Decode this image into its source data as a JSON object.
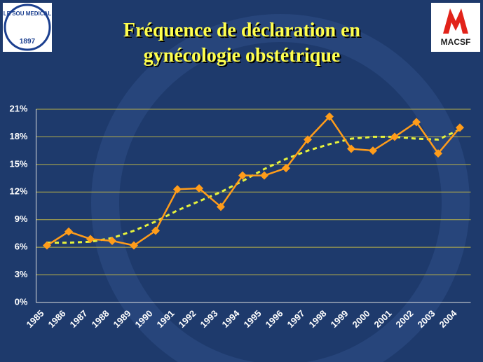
{
  "logo_left": {
    "name": "LE SOU MEDICAL",
    "year": "1897"
  },
  "logo_right": "MACSF",
  "chart_data": {
    "type": "line",
    "title": [
      "Fréquence de déclaration en",
      "gynécologie obstétrique"
    ],
    "categories": [
      "1985",
      "1986",
      "1987",
      "1988",
      "1989",
      "1990",
      "1991",
      "1992",
      "1993",
      "1994",
      "1995",
      "1996",
      "1997",
      "1998",
      "1999",
      "2000",
      "2001",
      "2002",
      "2003",
      "2004"
    ],
    "series": [
      {
        "color": "#ff9c1a",
        "style": "solid",
        "marker": "diamond",
        "values": [
          6.2,
          7.7,
          6.9,
          6.7,
          6.2,
          7.8,
          12.3,
          12.4,
          10.4,
          13.8,
          13.8,
          14.6,
          17.7,
          20.2,
          16.7,
          16.5,
          18.0,
          19.6,
          16.2,
          19.0
        ]
      },
      {
        "color": "#e6f23c",
        "style": "dashed",
        "marker": "none",
        "values": [
          6.5,
          6.5,
          6.6,
          7.0,
          7.8,
          8.8,
          10.0,
          11.0,
          12.0,
          13.2,
          14.5,
          15.6,
          16.5,
          17.2,
          17.8,
          18.0,
          18.0,
          17.8,
          17.7,
          18.8
        ]
      }
    ],
    "ylim": [
      0,
      21
    ],
    "yticks": [
      {
        "value": 0,
        "label": "0%"
      },
      {
        "value": 3,
        "label": "3%"
      },
      {
        "value": 6,
        "label": "6%"
      },
      {
        "value": 9,
        "label": "9%"
      },
      {
        "value": 12,
        "label": "12%"
      },
      {
        "value": 15,
        "label": "15%"
      },
      {
        "value": 18,
        "label": "18%"
      },
      {
        "value": 21,
        "label": "21%"
      }
    ],
    "grid": true,
    "grid_color": "#b8b048"
  }
}
